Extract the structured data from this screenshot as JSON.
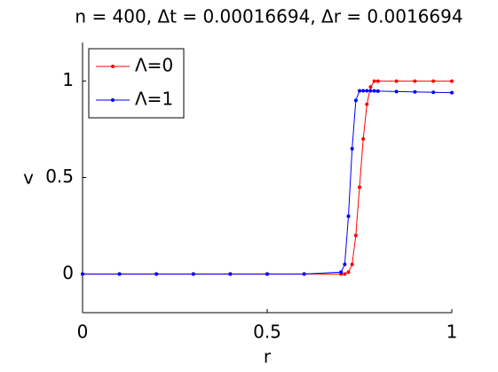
{
  "chart_data": {
    "type": "line",
    "title": "n = 400, Δt = 0.00016694, Δr = 0.0016694",
    "xlabel": "r",
    "ylabel": "v",
    "x": [
      0,
      0.1,
      0.2,
      0.3,
      0.4,
      0.5,
      0.6,
      0.7,
      0.71,
      0.72,
      0.73,
      0.74,
      0.75,
      0.76,
      0.77,
      0.78,
      0.79,
      0.8,
      0.85,
      0.9,
      0.95,
      1
    ],
    "series": [
      {
        "name": "Λ=0",
        "color": "#ff0000",
        "values": [
          0,
          0,
          0,
          0,
          0,
          0,
          0,
          0,
          0,
          0.01,
          0.05,
          0.2,
          0.45,
          0.7,
          0.88,
          0.97,
          1,
          1,
          1,
          1,
          1,
          1
        ]
      },
      {
        "name": "Λ=1",
        "color": "#0000ff",
        "values": [
          0,
          0,
          0,
          0,
          0,
          0,
          0,
          0.01,
          0.05,
          0.3,
          0.65,
          0.9,
          0.95,
          0.95,
          0.95,
          0.95,
          0.949,
          0.948,
          0.946,
          0.944,
          0.942,
          0.94
        ]
      }
    ],
    "xlim": [
      0,
      1
    ],
    "ylim": [
      -0.2,
      1.2
    ],
    "xticks": [
      0,
      0.5,
      1
    ],
    "yticks": [
      0,
      0.5,
      1
    ],
    "legend": "upper-left"
  }
}
